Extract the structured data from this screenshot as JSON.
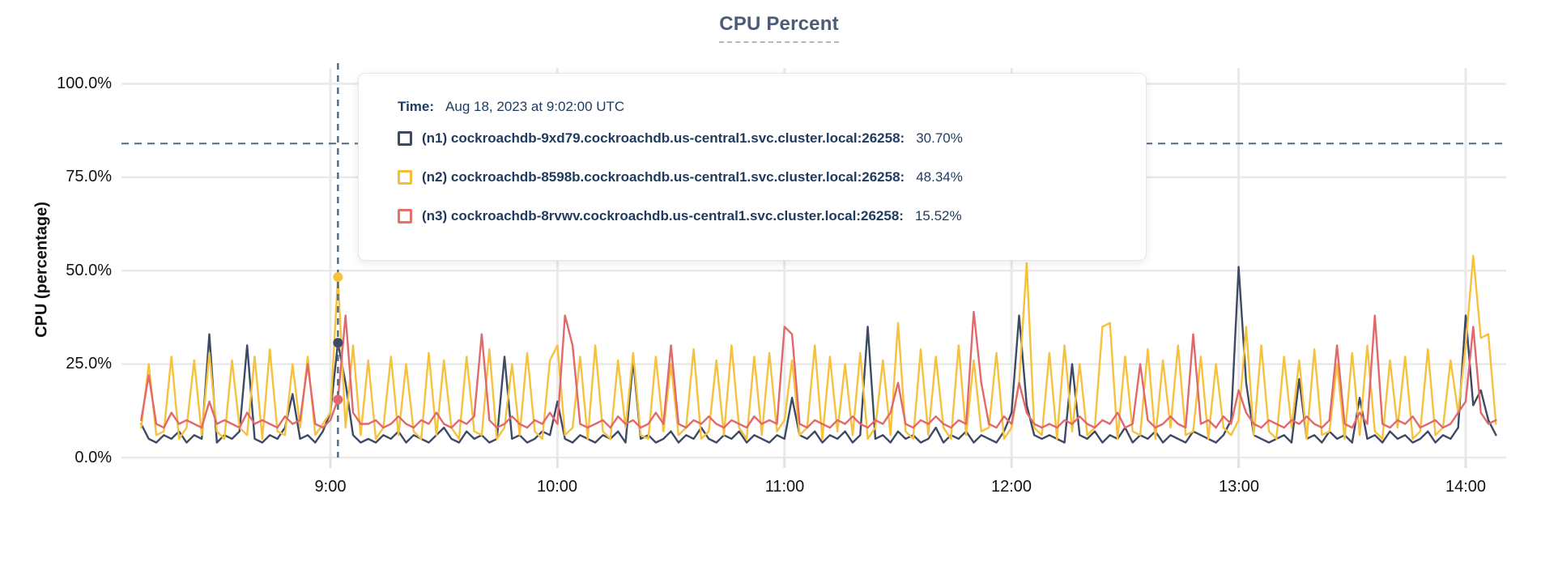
{
  "colors": {
    "grid": "#e9e9e9",
    "tick_stub": "#e2e2e2",
    "dashed_guides": "#52697e",
    "title_text": "#4c5b76",
    "tooltip_text": "#1e3a5f"
  },
  "tooltip": {
    "time_label": "Time:",
    "time_value": "Aug 18, 2023 at 9:02:00 UTC",
    "rows": [
      {
        "label": "(n1) cockroachdb-9xd79.cockroachdb.us-central1.svc.cluster.local:26258:",
        "value": "30.70%",
        "color": "#3e4a63"
      },
      {
        "label": "(n2) cockroachdb-8598b.cockroachdb.us-central1.svc.cluster.local:26258:",
        "value": "48.34%",
        "color": "#f2c032"
      },
      {
        "label": "(n3) cockroachdb-8rvwv.cockroachdb.us-central1.svc.cluster.local:26258:",
        "value": "15.52%",
        "color": "#e8706a"
      }
    ]
  },
  "chart_data": {
    "type": "line",
    "title": "CPU Percent",
    "ylabel": "CPU (percentage)",
    "ylim": [
      0,
      100
    ],
    "grid": true,
    "y_tick_labels": [
      "100.0%",
      "75.0%",
      "50.0%",
      "25.0%",
      "0.0%"
    ],
    "y_tick_values": [
      100,
      75,
      50,
      25,
      0
    ],
    "x_tick_labels": [
      "9:00",
      "10:00",
      "11:00",
      "12:00",
      "13:00",
      "14:00"
    ],
    "x_tick_minutes": [
      540,
      600,
      660,
      720,
      780,
      840
    ],
    "x_start_minutes": 490,
    "x_step_minutes": 2,
    "threshold_percent": 84,
    "hover": {
      "x_minutes": 542,
      "time": "Aug 18, 2023 at 9:02:00 UTC",
      "values": [
        30.7,
        48.34,
        15.52
      ]
    },
    "series": [
      {
        "name": "(n1) cockroachdb-9xd79.cockroachdb.us-central1.svc.cluster.local:26258",
        "color": "#3e4a63",
        "values": [
          9,
          5,
          4,
          6,
          5,
          7,
          4,
          6,
          5,
          33,
          4,
          6,
          5,
          7,
          30,
          5,
          4,
          6,
          5,
          8,
          17,
          5,
          6,
          4,
          7,
          12,
          30.7,
          20,
          6,
          4,
          5,
          4,
          6,
          5,
          7,
          4,
          6,
          5,
          4,
          6,
          8,
          5,
          4,
          7,
          5,
          6,
          4,
          5,
          27,
          5,
          6,
          4,
          5,
          7,
          6,
          15,
          5,
          4,
          6,
          5,
          4,
          6,
          5,
          7,
          4,
          26,
          5,
          6,
          4,
          5,
          7,
          4,
          6,
          5,
          8,
          5,
          4,
          6,
          5,
          7,
          4,
          6,
          5,
          4,
          6,
          5,
          16,
          6,
          5,
          7,
          4,
          6,
          5,
          7,
          4,
          6,
          35,
          5,
          6,
          4,
          7,
          5,
          6,
          4,
          5,
          8,
          4,
          6,
          5,
          7,
          4,
          6,
          5,
          4,
          7,
          12,
          38,
          14,
          6,
          5,
          6,
          5,
          4,
          25,
          6,
          5,
          7,
          4,
          6,
          5,
          8,
          4,
          6,
          5,
          7,
          4,
          6,
          5,
          4,
          7,
          6,
          5,
          4,
          6,
          10,
          51,
          20,
          6,
          5,
          4,
          5,
          6,
          4,
          21,
          5,
          6,
          4,
          7,
          5,
          6,
          4,
          16,
          5,
          6,
          4,
          7,
          5,
          6,
          4,
          5,
          7,
          4,
          6,
          5,
          8,
          38,
          14,
          18,
          10,
          6
        ]
      },
      {
        "name": "(n2) cockroachdb-8598b.cockroachdb.us-central1.svc.cluster.local:26258",
        "color": "#f6c13d",
        "values": [
          8,
          25,
          6,
          7,
          27,
          5,
          8,
          26,
          6,
          28,
          7,
          5,
          26,
          8,
          6,
          27,
          5,
          29,
          7,
          6,
          25,
          8,
          27,
          6,
          9,
          12,
          48.3,
          8,
          30,
          6,
          26,
          5,
          8,
          27,
          6,
          25,
          7,
          5,
          28,
          6,
          26,
          8,
          5,
          27,
          7,
          6,
          29,
          5,
          8,
          25,
          6,
          28,
          7,
          5,
          26,
          30,
          6,
          8,
          27,
          5,
          30,
          7,
          5,
          26,
          8,
          28,
          6,
          5,
          27,
          7,
          25,
          6,
          8,
          29,
          5,
          7,
          26,
          6,
          30,
          8,
          5,
          27,
          6,
          28,
          7,
          10,
          26,
          6,
          8,
          30,
          5,
          27,
          7,
          25,
          6,
          28,
          5,
          8,
          26,
          6,
          36,
          7,
          5,
          29,
          6,
          27,
          8,
          5,
          30,
          6,
          26,
          7,
          8,
          28,
          5,
          8,
          20,
          52,
          8,
          6,
          28,
          5,
          30,
          7,
          25,
          6,
          8,
          35,
          36,
          5,
          27,
          7,
          6,
          29,
          5,
          26,
          8,
          30,
          6,
          7,
          27,
          5,
          25,
          8,
          6,
          10,
          35,
          6,
          30,
          7,
          5,
          27,
          8,
          26,
          5,
          29,
          6,
          7,
          25,
          5,
          28,
          6,
          30,
          7,
          5,
          26,
          8,
          27,
          5,
          7,
          29,
          6,
          8,
          26,
          12,
          30,
          54,
          32,
          33,
          9
        ]
      },
      {
        "name": "(n3) cockroachdb-8rvwv.cockroachdb.us-central1.svc.cluster.local:26258",
        "color": "#e2696b",
        "values": [
          10,
          22,
          9,
          8,
          12,
          9,
          10,
          9,
          8,
          15,
          9,
          10,
          9,
          8,
          12,
          9,
          10,
          9,
          8,
          11,
          9,
          10,
          25,
          9,
          8,
          10,
          15.5,
          38,
          12,
          9,
          9,
          10,
          8,
          9,
          11,
          9,
          8,
          10,
          9,
          12,
          9,
          8,
          10,
          9,
          11,
          33,
          10,
          8,
          9,
          11,
          9,
          8,
          10,
          9,
          12,
          9,
          38,
          30,
          9,
          8,
          9,
          10,
          8,
          11,
          9,
          10,
          8,
          9,
          12,
          9,
          30,
          9,
          8,
          10,
          9,
          11,
          9,
          8,
          10,
          9,
          8,
          11,
          9,
          10,
          9,
          35,
          33,
          9,
          8,
          10,
          9,
          8,
          10,
          9,
          11,
          9,
          8,
          10,
          9,
          12,
          20,
          9,
          8,
          10,
          9,
          11,
          9,
          8,
          10,
          9,
          39,
          20,
          9,
          8,
          11,
          9,
          20,
          12,
          9,
          8,
          9,
          8,
          10,
          9,
          11,
          9,
          8,
          10,
          9,
          12,
          8,
          9,
          25,
          10,
          8,
          9,
          11,
          9,
          8,
          33,
          9,
          10,
          8,
          11,
          9,
          18,
          12,
          9,
          8,
          10,
          9,
          8,
          10,
          9,
          11,
          9,
          8,
          10,
          30,
          9,
          8,
          12,
          9,
          38,
          9,
          8,
          10,
          9,
          11,
          8,
          9,
          10,
          8,
          9,
          12,
          15,
          35,
          12,
          9,
          10
        ]
      }
    ]
  }
}
